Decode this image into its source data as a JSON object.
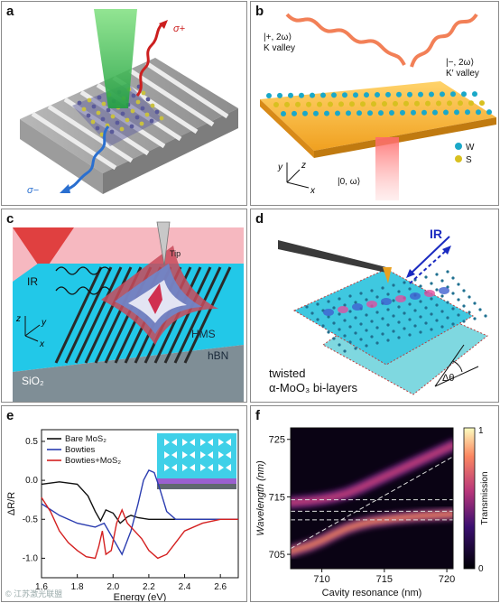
{
  "panels": {
    "a": {
      "label": "a",
      "sigma_plus": "σ+",
      "sigma_minus": "σ−"
    },
    "b": {
      "label": "b",
      "k_state": "|+, 2ω⟩",
      "k_valley": "K valley",
      "kp_state": "|−, 2ω⟩",
      "kp_valley": "K′ valley",
      "ground_state": "|0, ω⟩",
      "legend_w": "W",
      "legend_s": "S",
      "axis_x": "x",
      "axis_y": "y",
      "axis_z": "z"
    },
    "c": {
      "label": "c",
      "ir": "IR",
      "tip": "Tip",
      "hms": "HMS",
      "hbn": "hBN",
      "sio2": "SiO₂",
      "axis_x": "x",
      "axis_y": "y",
      "axis_z": "z"
    },
    "d": {
      "label": "d",
      "ir": "IR",
      "caption_line1": "twisted",
      "caption_line2": "α-MoO₃ bi-layers",
      "angle": "Δθ"
    },
    "e": {
      "label": "e"
    },
    "f": {
      "label": "f"
    }
  },
  "watermark": "© 江苏激光联盟",
  "chart_data": [
    {
      "panel": "e",
      "type": "line",
      "xlabel": "Energy (eV)",
      "ylabel": "ΔR/R",
      "xlim": [
        1.6,
        2.7
      ],
      "ylim": [
        -1.25,
        0.65
      ],
      "xticks": [
        "1.6",
        "1.8",
        "2.0",
        "2.2",
        "2.4",
        "2.6"
      ],
      "yticks": [
        "0.5",
        "0.0",
        "-0.5",
        "-1.0"
      ],
      "legend_position": "top-left",
      "series": [
        {
          "name": "Bare MoS₂",
          "color": "#111111",
          "x": [
            1.6,
            1.7,
            1.8,
            1.86,
            1.9,
            1.93,
            1.96,
            2.0,
            2.04,
            2.08,
            2.1,
            2.14,
            2.2,
            2.3,
            2.4,
            2.5,
            2.6,
            2.7
          ],
          "y": [
            -0.05,
            -0.02,
            -0.05,
            -0.2,
            -0.4,
            -0.52,
            -0.38,
            -0.42,
            -0.55,
            -0.47,
            -0.45,
            -0.48,
            -0.5,
            -0.5,
            -0.5,
            -0.5,
            -0.5,
            -0.5
          ]
        },
        {
          "name": "Bowties",
          "color": "#2a3cb0",
          "x": [
            1.6,
            1.7,
            1.8,
            1.9,
            1.95,
            2.0,
            2.05,
            2.1,
            2.14,
            2.17,
            2.2,
            2.23,
            2.26,
            2.3,
            2.35,
            2.4,
            2.5,
            2.6,
            2.7
          ],
          "y": [
            -0.3,
            -0.45,
            -0.55,
            -0.6,
            -0.55,
            -0.75,
            -0.95,
            -0.65,
            -0.3,
            0.0,
            0.13,
            0.1,
            -0.1,
            -0.4,
            -0.5,
            -0.5,
            -0.5,
            -0.5,
            -0.5
          ]
        },
        {
          "name": "Bowties+MoS₂",
          "color": "#d42020",
          "x": [
            1.6,
            1.65,
            1.7,
            1.75,
            1.8,
            1.85,
            1.9,
            1.92,
            1.94,
            1.96,
            1.99,
            2.02,
            2.05,
            2.08,
            2.12,
            2.16,
            2.2,
            2.25,
            2.3,
            2.35,
            2.4,
            2.5,
            2.6,
            2.7
          ],
          "y": [
            -0.22,
            -0.4,
            -0.65,
            -0.8,
            -0.9,
            -0.98,
            -1.0,
            -0.85,
            -0.65,
            -0.95,
            -0.9,
            -0.55,
            -0.38,
            -0.55,
            -0.65,
            -0.75,
            -0.9,
            -1.0,
            -0.95,
            -0.8,
            -0.65,
            -0.55,
            -0.5,
            -0.5
          ]
        }
      ]
    },
    {
      "panel": "f",
      "type": "heatmap",
      "xlabel": "Cavity resonance (nm)",
      "ylabel": "Wavelength (nm)",
      "xlim": [
        707.5,
        720.5
      ],
      "ylim": [
        702.5,
        727
      ],
      "xticks": [
        "710",
        "715",
        "720"
      ],
      "yticks": [
        "725",
        "715",
        "705"
      ],
      "colorbar_label": "Transmission",
      "colorbar_range": [
        0,
        1
      ],
      "colorbar_ticks": [
        "1",
        "0"
      ],
      "exciton_wavelength": 712.5,
      "upper_branch": {
        "x": [
          707.5,
          709,
          710,
          711,
          712,
          713,
          714,
          715,
          716,
          717,
          718,
          719,
          720.5
        ],
        "y": [
          714.0,
          714.3,
          714.6,
          715.0,
          715.6,
          716.5,
          717.5,
          718.5,
          719.5,
          720.5,
          721.5,
          722.5,
          724.0
        ]
      },
      "lower_branch": {
        "x": [
          707.5,
          709,
          710,
          711,
          712,
          713,
          714,
          715,
          716,
          717,
          718,
          719,
          720.5
        ],
        "y": [
          705.5,
          706.5,
          707.4,
          708.5,
          709.5,
          710.2,
          710.7,
          711.0,
          711.3,
          711.5,
          711.7,
          711.8,
          712.0
        ]
      },
      "guide_lines": [
        {
          "x": [
            707.5,
            720.5
          ],
          "y": [
            714.5,
            714.5
          ]
        },
        {
          "x": [
            707.5,
            720.5
          ],
          "y": [
            712.5,
            712.5
          ]
        },
        {
          "x": [
            707.5,
            720.5
          ],
          "y": [
            711.0,
            711.0
          ]
        },
        {
          "x": [
            707.5,
            720.5
          ],
          "y": [
            706.0,
            722.0
          ]
        }
      ]
    }
  ]
}
